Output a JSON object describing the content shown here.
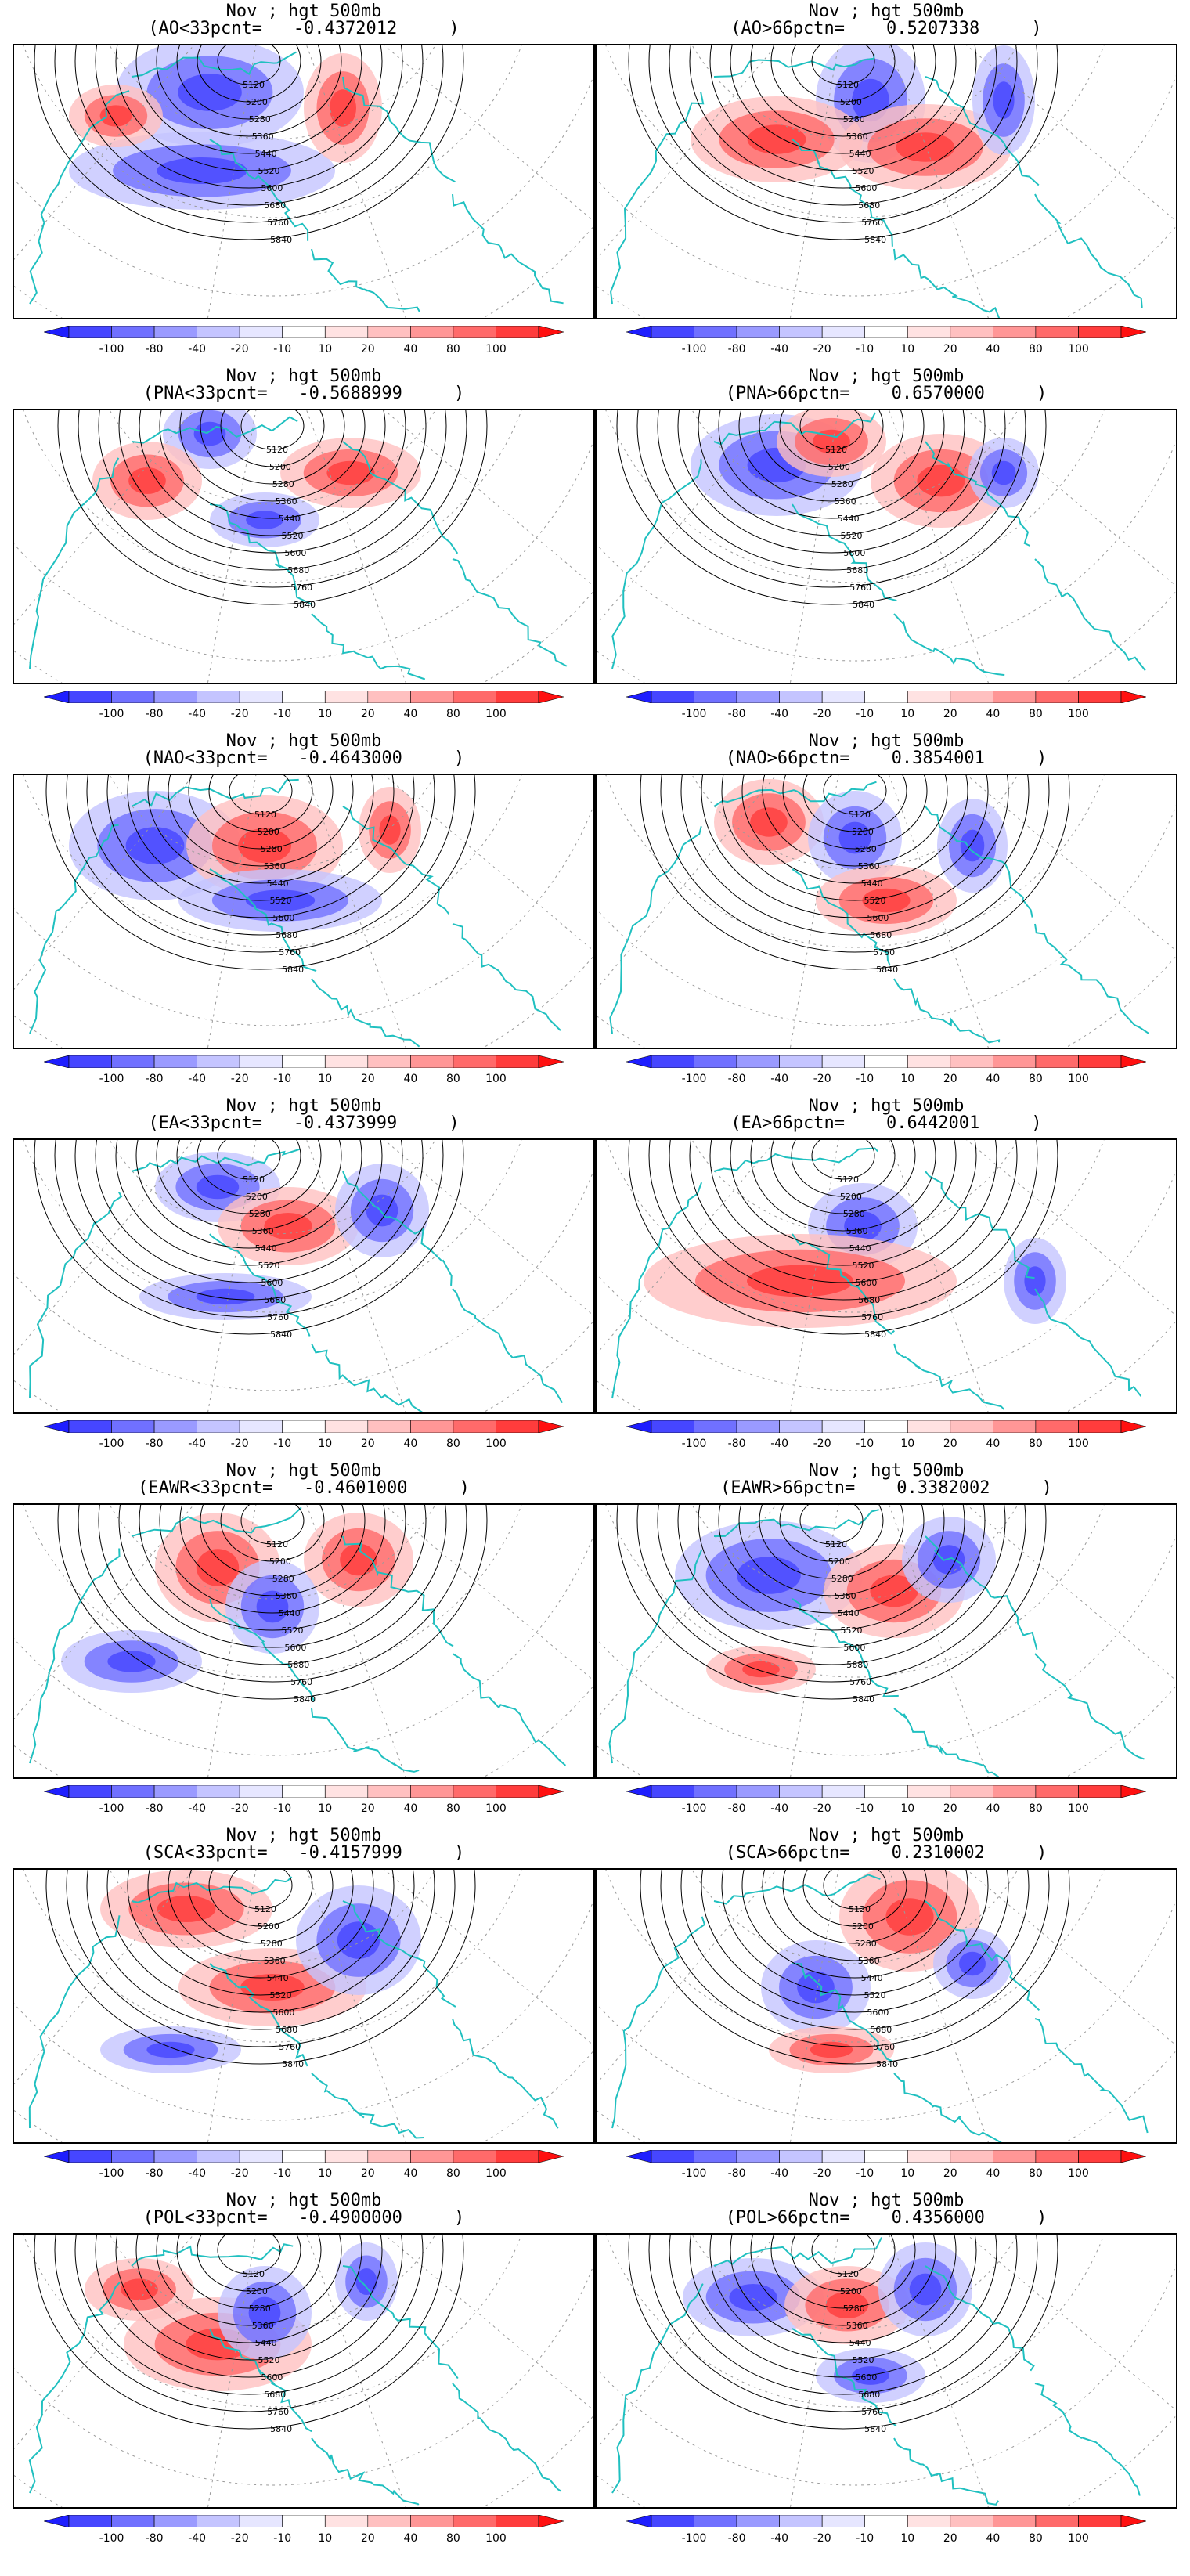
{
  "colorbar": {
    "ticks": [
      "-100",
      "-80",
      "-40",
      "-20",
      "-10",
      "10",
      "20",
      "40",
      "80",
      "100"
    ],
    "colors": [
      "#1e1eff",
      "#4646ff",
      "#7070ff",
      "#9a9aff",
      "#c4c4ff",
      "#e6e6ff",
      "#ffffff",
      "#ffe2e2",
      "#ffc0c0",
      "#ff9696",
      "#ff6a6a",
      "#ff3c3c",
      "#ff1010"
    ]
  },
  "contour_labels": [
    "5120",
    "5200",
    "5280",
    "5360",
    "5440",
    "5520",
    "5600",
    "5680",
    "5760",
    "5840"
  ],
  "colors": {
    "coastline": "#20c0c0",
    "grid": "#9a9a9a",
    "contour": "#000000"
  },
  "panels": [
    {
      "title": "Nov ; hgt 500mb",
      "subtitle": "(AO<33pcnt=   -0.4372012     )"
    },
    {
      "title": "Nov ; hgt 500mb",
      "subtitle": "(AO>66pctn=    0.5207338     )"
    },
    {
      "title": "Nov ; hgt 500mb",
      "subtitle": "(PNA<33pcnt=   -0.5688999     )"
    },
    {
      "title": "Nov ; hgt 500mb",
      "subtitle": "(PNA>66pctn=    0.6570000     )"
    },
    {
      "title": "Nov ; hgt 500mb",
      "subtitle": "(NAO<33pcnt=   -0.4643000     )"
    },
    {
      "title": "Nov ; hgt 500mb",
      "subtitle": "(NAO>66pctn=    0.3854001     )"
    },
    {
      "title": "Nov ; hgt 500mb",
      "subtitle": "(EA<33pcnt=   -0.4373999     )"
    },
    {
      "title": "Nov ; hgt 500mb",
      "subtitle": "(EA>66pctn=    0.6442001     )"
    },
    {
      "title": "Nov ; hgt 500mb",
      "subtitle": "(EAWR<33pcnt=   -0.4601000     )"
    },
    {
      "title": "Nov ; hgt 500mb",
      "subtitle": "(EAWR>66pctn=    0.3382002     )"
    },
    {
      "title": "Nov ; hgt 500mb",
      "subtitle": "(SCA<33pcnt=   -0.4157999     )"
    },
    {
      "title": "Nov ; hgt 500mb",
      "subtitle": "(SCA>66pctn=    0.2310002     )"
    },
    {
      "title": "Nov ; hgt 500mb",
      "subtitle": "(POL<33pcnt=   -0.4900000     )"
    },
    {
      "title": "Nov ; hgt 500mb",
      "subtitle": "(POL>66pctn=    0.4356000     )"
    }
  ]
}
